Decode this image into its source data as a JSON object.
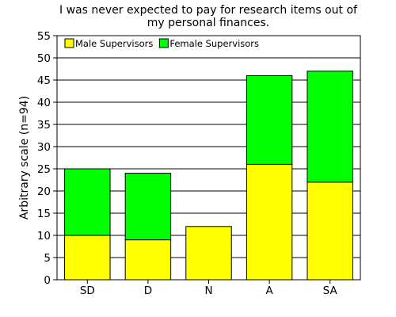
{
  "chart_data": {
    "type": "bar",
    "stacked": true,
    "title_lines": [
      "I was never expected to pay for research items out of",
      "my personal finances."
    ],
    "xlabel": "",
    "ylabel": "Arbitrary scale (n=94)",
    "categories": [
      "SD",
      "D",
      "N",
      "A",
      "SA"
    ],
    "series": [
      {
        "name": "Male Supervisors",
        "values": [
          10,
          9,
          12,
          26,
          22
        ],
        "color": "#ffff00"
      },
      {
        "name": "Female Supervisors",
        "values": [
          15,
          15,
          0,
          20,
          25
        ],
        "color": "#00ff00"
      }
    ],
    "ylim": [
      0,
      55
    ],
    "yticks": [
      "0",
      "5",
      "10",
      "15",
      "20",
      "25",
      "30",
      "35",
      "40",
      "45",
      "50",
      "55"
    ],
    "grid": "horizontal",
    "legend_position": "top-left"
  }
}
